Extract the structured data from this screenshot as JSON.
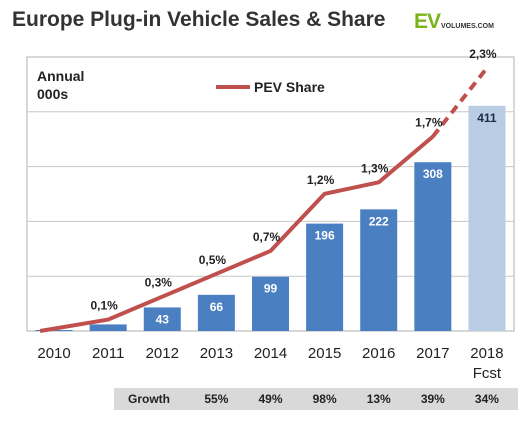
{
  "title": "Europe Plug-in Vehicle Sales & Share",
  "logo": {
    "main": "EV",
    "sub": "VOLUMES.COM"
  },
  "chart_data": {
    "type": "bar",
    "categories": [
      "2010",
      "2011",
      "2012",
      "2013",
      "2014",
      "2015",
      "2016",
      "2017",
      "2018"
    ],
    "category_sublabels": [
      "",
      "",
      "",
      "",
      "",
      "",
      "",
      "",
      "Fcst"
    ],
    "ylabel": [
      "Annual",
      "000s"
    ],
    "ylim": [
      0,
      500
    ],
    "grid": true,
    "bar_series": {
      "values": [
        1,
        12,
        43,
        66,
        99,
        196,
        222,
        308,
        411
      ],
      "labels": [
        "",
        "",
        "43",
        "66",
        "99",
        "196",
        "222",
        "308",
        "411"
      ],
      "colors": [
        "#4a7fc1",
        "#4a7fc1",
        "#4a7fc1",
        "#4a7fc1",
        "#4a7fc1",
        "#4a7fc1",
        "#4a7fc1",
        "#4a7fc1",
        "#b8cde3"
      ]
    },
    "line_series": {
      "name": "PEV Share",
      "values": [
        0.0,
        0.1,
        0.3,
        0.5,
        0.7,
        1.2,
        1.3,
        1.7,
        2.3
      ],
      "labels": [
        "",
        "0,1%",
        "0,3%",
        "0,5%",
        "0,7%",
        "1,2%",
        "1,3%",
        "1,7%",
        "2,3%"
      ],
      "forecast_from_index": 7,
      "color": "#c0504d"
    },
    "legend": "top-center",
    "growth": {
      "label": "Growth",
      "values": [
        "55%",
        "49%",
        "98%",
        "13%",
        "39%",
        "34%"
      ]
    }
  }
}
